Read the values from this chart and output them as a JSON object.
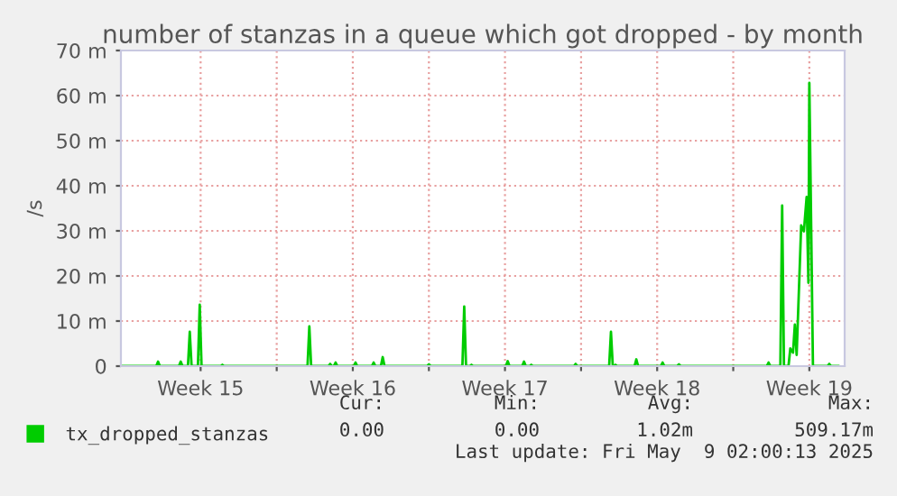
{
  "chart_data": {
    "type": "line",
    "title": "number of stanzas in a queue which got dropped - by month",
    "ylabel": "/s",
    "xlim": [
      "2025-04-05T20:00",
      "2025-05-09T03:00"
    ],
    "ylim": [
      0,
      70
    ],
    "xticks": [
      {
        "value": "2025-04-09T12:00",
        "label": "Week 15"
      },
      {
        "value": "2025-04-13",
        "label": null
      },
      {
        "value": "2025-04-16T12:00",
        "label": "Week 16"
      },
      {
        "value": "2025-04-20",
        "label": null
      },
      {
        "value": "2025-04-23T12:00",
        "label": "Week 17"
      },
      {
        "value": "2025-04-27",
        "label": null
      },
      {
        "value": "2025-04-30T12:00",
        "label": "Week 18"
      },
      {
        "value": "2025-05-04",
        "label": null
      },
      {
        "value": "2025-05-07T12:00",
        "label": "Week 19"
      }
    ],
    "yticks": [
      0,
      {
        "value": 10,
        "label": "10 m"
      },
      {
        "value": 20,
        "label": "20 m"
      },
      {
        "value": 30,
        "label": "30 m"
      },
      {
        "value": 40,
        "label": "40 m"
      },
      {
        "value": 50,
        "label": "50 m"
      },
      {
        "value": 60,
        "label": "60 m"
      },
      {
        "value": 70,
        "label": "70 m"
      }
    ],
    "grid": true,
    "legend": "bottom",
    "marker": "none",
    "line_style": "solid",
    "series": [
      {
        "name": "tx_dropped_stanzas",
        "color": "#00cc00",
        "x": [
          "2025-04-05T20:00",
          "2025-04-07T11:00",
          "2025-04-07T13:00",
          "2025-04-07T15:00",
          "2025-04-08T12:00",
          "2025-04-08T14:00",
          "2025-04-08T16:00",
          "2025-04-08T22:00",
          "2025-04-09T00:00",
          "2025-04-09T02:00",
          "2025-04-09T09:00",
          "2025-04-09T11:00",
          "2025-04-09T13:00",
          "2025-04-10T10:00",
          "2025-04-10T12:00",
          "2025-04-10T14:00",
          "2025-04-14T10:00",
          "2025-04-14T12:00",
          "2025-04-14T14:00",
          "2025-04-15T09:00",
          "2025-04-15T11:00",
          "2025-04-15T13:00",
          "2025-04-15T15:00",
          "2025-04-15T17:00",
          "2025-04-15T19:00",
          "2025-04-16T13:00",
          "2025-04-16T15:00",
          "2025-04-16T17:00",
          "2025-04-17T09:00",
          "2025-04-17T11:00",
          "2025-04-17T13:00",
          "2025-04-17T19:00",
          "2025-04-17T21:00",
          "2025-04-17T23:00",
          "2025-04-19T22:00",
          "2025-04-20T00:00",
          "2025-04-20T02:00",
          "2025-04-21T13:00",
          "2025-04-21T15:00",
          "2025-04-21T17:00",
          "2025-04-21T21:00",
          "2025-04-21T23:00",
          "2025-04-22T01:00",
          "2025-04-23T13:00",
          "2025-04-23T15:00",
          "2025-04-23T17:00",
          "2025-04-24T07:00",
          "2025-04-24T09:00",
          "2025-04-24T11:00",
          "2025-04-24T15:00",
          "2025-04-24T17:00",
          "2025-04-24T19:00",
          "2025-04-26T16:00",
          "2025-04-26T18:00",
          "2025-04-26T20:00",
          "2025-04-28T07:00",
          "2025-04-28T09:00",
          "2025-04-28T11:00",
          "2025-04-28T12:00",
          "2025-04-28T14:00",
          "2025-04-28T16:00",
          "2025-04-29T11:00",
          "2025-04-29T13:00",
          "2025-04-29T15:00",
          "2025-04-30T16:00",
          "2025-04-30T18:00",
          "2025-04-30T20:00",
          "2025-05-01T10:00",
          "2025-05-01T12:00",
          "2025-05-01T14:00",
          "2025-05-05T13:00",
          "2025-05-05T15:00",
          "2025-05-05T17:00",
          "2025-05-06T04:00",
          "2025-05-06T06:00",
          "2025-05-06T08:00",
          "2025-05-06T13:00",
          "2025-05-06T15:00",
          "2025-05-06T18:00",
          "2025-05-06T20:00",
          "2025-05-06T22:00",
          "2025-05-07T03:00",
          "2025-05-07T06:00",
          "2025-05-07T09:00",
          "2025-05-07T11:00",
          "2025-05-07T12:00",
          "2025-05-07T16:00",
          "2025-05-08T08:00",
          "2025-05-08T10:00",
          "2025-05-08T12:00",
          "2025-05-08T20:00"
        ],
        "values": [
          0,
          0,
          1,
          0,
          0,
          1,
          0,
          0,
          7.6,
          0,
          0,
          13.6,
          0,
          0,
          0.3,
          0,
          0,
          8.8,
          0,
          0,
          0.5,
          0,
          0,
          0.8,
          0,
          0,
          0.8,
          0,
          0,
          0.8,
          0,
          0,
          2,
          0,
          0,
          0.4,
          0,
          0,
          13.2,
          0,
          0,
          0.3,
          0,
          0,
          1.1,
          0,
          0,
          1,
          0,
          0,
          0.3,
          0,
          0,
          0.5,
          0,
          0,
          7.6,
          0,
          0,
          0.3,
          0,
          0,
          1.5,
          0,
          0,
          0.8,
          0,
          0,
          0.4,
          0,
          0,
          0.8,
          0,
          0,
          35.6,
          0,
          0,
          3.9,
          3,
          9.2,
          2.5,
          31.2,
          29.9,
          37.5,
          18.5,
          62.8,
          0,
          0,
          0.5,
          0,
          0
        ]
      }
    ],
    "annotations": [
      "Cur:",
      "Min:",
      "Avg:",
      "Max:",
      "0.00",
      "0.00",
      "1.02m",
      "509.17m",
      "Last update: Fri May  9 02:00:13 2025"
    ]
  }
}
